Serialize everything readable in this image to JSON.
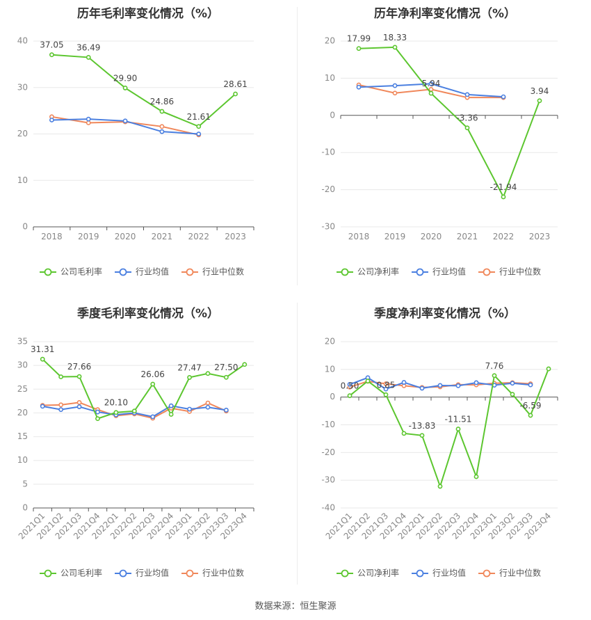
{
  "source_text": "数据来源：恒生聚源",
  "colors": {
    "company": "#5cc62f",
    "avg": "#4a7fe0",
    "median": "#f0875a",
    "grid": "#e8e8e8",
    "axis": "#666666"
  },
  "chart_data": [
    {
      "id": "annual-gross",
      "type": "line",
      "title": "历年毛利率变化情况（%）",
      "categories": [
        "2018",
        "2019",
        "2020",
        "2021",
        "2022",
        "2023"
      ],
      "ylim": [
        0,
        40
      ],
      "yticks": [
        0,
        10,
        20,
        30,
        40
      ],
      "grid": true,
      "legend_position": "bottom",
      "series": [
        {
          "name": "公司毛利率",
          "key": "company",
          "values": [
            37.05,
            36.49,
            29.9,
            24.86,
            21.61,
            28.61
          ],
          "labels": true
        },
        {
          "name": "行业均值",
          "key": "avg",
          "values": [
            23.0,
            23.2,
            22.8,
            20.5,
            20.0,
            null
          ],
          "labels": false
        },
        {
          "name": "行业中位数",
          "key": "median",
          "values": [
            23.7,
            22.4,
            22.6,
            21.6,
            19.8,
            null
          ],
          "labels": false
        }
      ]
    },
    {
      "id": "annual-net",
      "type": "line",
      "title": "历年净利率变化情况（%）",
      "categories": [
        "2018",
        "2019",
        "2020",
        "2021",
        "2022",
        "2023"
      ],
      "ylim": [
        -30,
        20
      ],
      "yticks": [
        -30,
        -20,
        -10,
        0,
        10,
        20
      ],
      "grid": true,
      "zero_line": true,
      "legend_position": "bottom",
      "series": [
        {
          "name": "公司净利率",
          "key": "company",
          "values": [
            17.99,
            18.33,
            5.94,
            -3.36,
            -21.94,
            3.94
          ],
          "labels": true
        },
        {
          "name": "行业均值",
          "key": "avg",
          "values": [
            7.6,
            8.0,
            8.5,
            5.6,
            5.0,
            null
          ],
          "labels": false
        },
        {
          "name": "行业中位数",
          "key": "median",
          "values": [
            8.2,
            6.0,
            7.0,
            4.8,
            4.8,
            null
          ],
          "labels": false
        }
      ]
    },
    {
      "id": "quarterly-gross",
      "type": "line",
      "title": "季度毛利率变化情况（%）",
      "categories": [
        "2021Q1",
        "2021Q2",
        "2021Q3",
        "2021Q4",
        "2022Q1",
        "2022Q2",
        "2022Q3",
        "2022Q4",
        "2023Q1",
        "2023Q2",
        "2023Q3",
        "2023Q4"
      ],
      "ylim": [
        0,
        35
      ],
      "yticks": [
        0,
        5,
        10,
        15,
        20,
        25,
        30,
        35
      ],
      "grid": true,
      "legend_position": "bottom",
      "series": [
        {
          "name": "公司毛利率",
          "key": "company",
          "values": [
            31.31,
            27.6,
            27.66,
            18.8,
            20.1,
            20.4,
            26.06,
            19.7,
            27.47,
            28.3,
            27.5,
            30.2
          ],
          "label_values": [
            31.31,
            null,
            27.66,
            null,
            20.1,
            null,
            26.06,
            null,
            27.47,
            null,
            27.5,
            null
          ]
        },
        {
          "name": "行业均值",
          "key": "avg",
          "values": [
            21.4,
            20.7,
            21.3,
            20.2,
            19.6,
            20.0,
            19.2,
            21.5,
            20.8,
            21.2,
            20.6,
            null
          ]
        },
        {
          "name": "行业中位数",
          "key": "median",
          "values": [
            21.6,
            21.7,
            22.2,
            20.7,
            19.4,
            19.8,
            18.9,
            21.0,
            20.3,
            22.1,
            20.4,
            null
          ]
        }
      ]
    },
    {
      "id": "quarterly-net",
      "type": "line",
      "title": "季度净利率变化情况（%）",
      "categories": [
        "2021Q1",
        "2021Q2",
        "2021Q3",
        "2021Q4",
        "2022Q1",
        "2022Q2",
        "2022Q3",
        "2022Q4",
        "2023Q1",
        "2023Q2",
        "2023Q3",
        "2023Q4"
      ],
      "ylim": [
        -40,
        20
      ],
      "yticks": [
        -40,
        -30,
        -20,
        -10,
        0,
        10,
        20
      ],
      "grid": true,
      "zero_line": true,
      "legend_position": "bottom",
      "series": [
        {
          "name": "公司净利率",
          "key": "company",
          "values": [
            0.5,
            5.8,
            0.85,
            -13.1,
            -13.83,
            -32.2,
            -11.51,
            -28.7,
            7.76,
            1.0,
            -6.59,
            10.2
          ],
          "label_values": [
            0.5,
            null,
            0.85,
            null,
            -13.83,
            null,
            -11.51,
            null,
            7.76,
            null,
            -6.59,
            null
          ]
        },
        {
          "name": "行业均值",
          "key": "avg",
          "values": [
            4.6,
            7.0,
            2.9,
            5.3,
            3.2,
            4.2,
            4.1,
            5.2,
            4.3,
            5.0,
            4.4,
            null
          ]
        },
        {
          "name": "行业中位数",
          "key": "median",
          "values": [
            3.6,
            5.7,
            4.8,
            4.1,
            3.5,
            3.7,
            4.5,
            4.4,
            5.0,
            5.2,
            4.8,
            null
          ]
        }
      ]
    }
  ]
}
